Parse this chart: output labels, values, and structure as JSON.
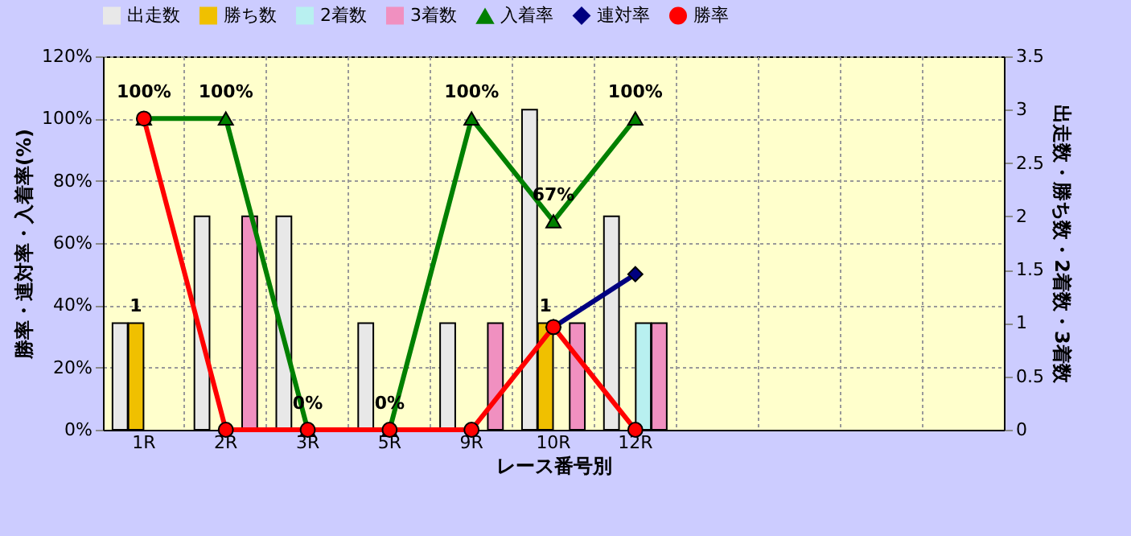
{
  "chart_data": {
    "type": "bar",
    "xlabel": "レース番号別",
    "ylabel": "勝率・連対率・入着率(%)",
    "y2label": "出走数・勝ち数・2着数・3着数",
    "categories": [
      "1R",
      "2R",
      "3R",
      "5R",
      "9R",
      "10R",
      "12R",
      null,
      null,
      null,
      null
    ],
    "series": [
      {
        "name": "出走数",
        "axis": "y2",
        "color": "#e8e8e8",
        "values": [
          1,
          2,
          2,
          1,
          1,
          3,
          2,
          null,
          null,
          null,
          null
        ]
      },
      {
        "name": "勝ち数",
        "axis": "y2",
        "color": "#f0c000",
        "values": [
          1,
          null,
          null,
          null,
          null,
          1,
          null,
          null,
          null,
          null,
          null
        ],
        "value_labels": [
          "1",
          null,
          null,
          null,
          null,
          "1",
          null,
          null,
          null,
          null,
          null
        ]
      },
      {
        "name": "2着数",
        "axis": "y2",
        "color": "#b8f0f0",
        "values": [
          null,
          null,
          null,
          null,
          null,
          null,
          1,
          null,
          null,
          null,
          null
        ]
      },
      {
        "name": "3着数",
        "axis": "y2",
        "color": "#f090c0",
        "values": [
          null,
          2,
          null,
          null,
          1,
          1,
          1,
          null,
          null,
          null,
          null
        ]
      },
      {
        "name": "入着率",
        "type": "line",
        "color": "#008000",
        "marker": "triangle",
        "values": [
          100,
          100,
          0,
          0,
          100,
          67,
          100,
          null,
          null,
          null,
          null
        ],
        "value_labels": [
          "100%",
          "100%",
          "0%",
          "0%",
          "100%",
          "67%",
          "100%",
          null,
          null,
          null,
          null
        ]
      },
      {
        "name": "連対率",
        "type": "line",
        "color": "#000080",
        "marker": "diamond",
        "values": [
          null,
          null,
          null,
          null,
          null,
          33,
          50,
          null,
          null,
          null,
          null
        ]
      },
      {
        "name": "勝率",
        "type": "line",
        "color": "#ff0000",
        "marker": "circle",
        "values": [
          100,
          0,
          0,
          0,
          0,
          33,
          0,
          null,
          null,
          null,
          null
        ]
      }
    ],
    "ylim": [
      0,
      120
    ],
    "yticks": [
      {
        "value": 0,
        "label": "0%"
      },
      {
        "value": 20,
        "label": "20%"
      },
      {
        "value": 40,
        "label": "40%"
      },
      {
        "value": 60,
        "label": "60%"
      },
      {
        "value": 80,
        "label": "80%"
      },
      {
        "value": 100,
        "label": "100%"
      },
      {
        "value": 120,
        "label": "120%"
      }
    ],
    "y2lim": [
      0,
      3.5
    ],
    "y2ticks": [
      0,
      0.5,
      1,
      1.5,
      2,
      2.5,
      3,
      3.5
    ],
    "grid": true,
    "legend": "top",
    "line_style": "solid"
  }
}
